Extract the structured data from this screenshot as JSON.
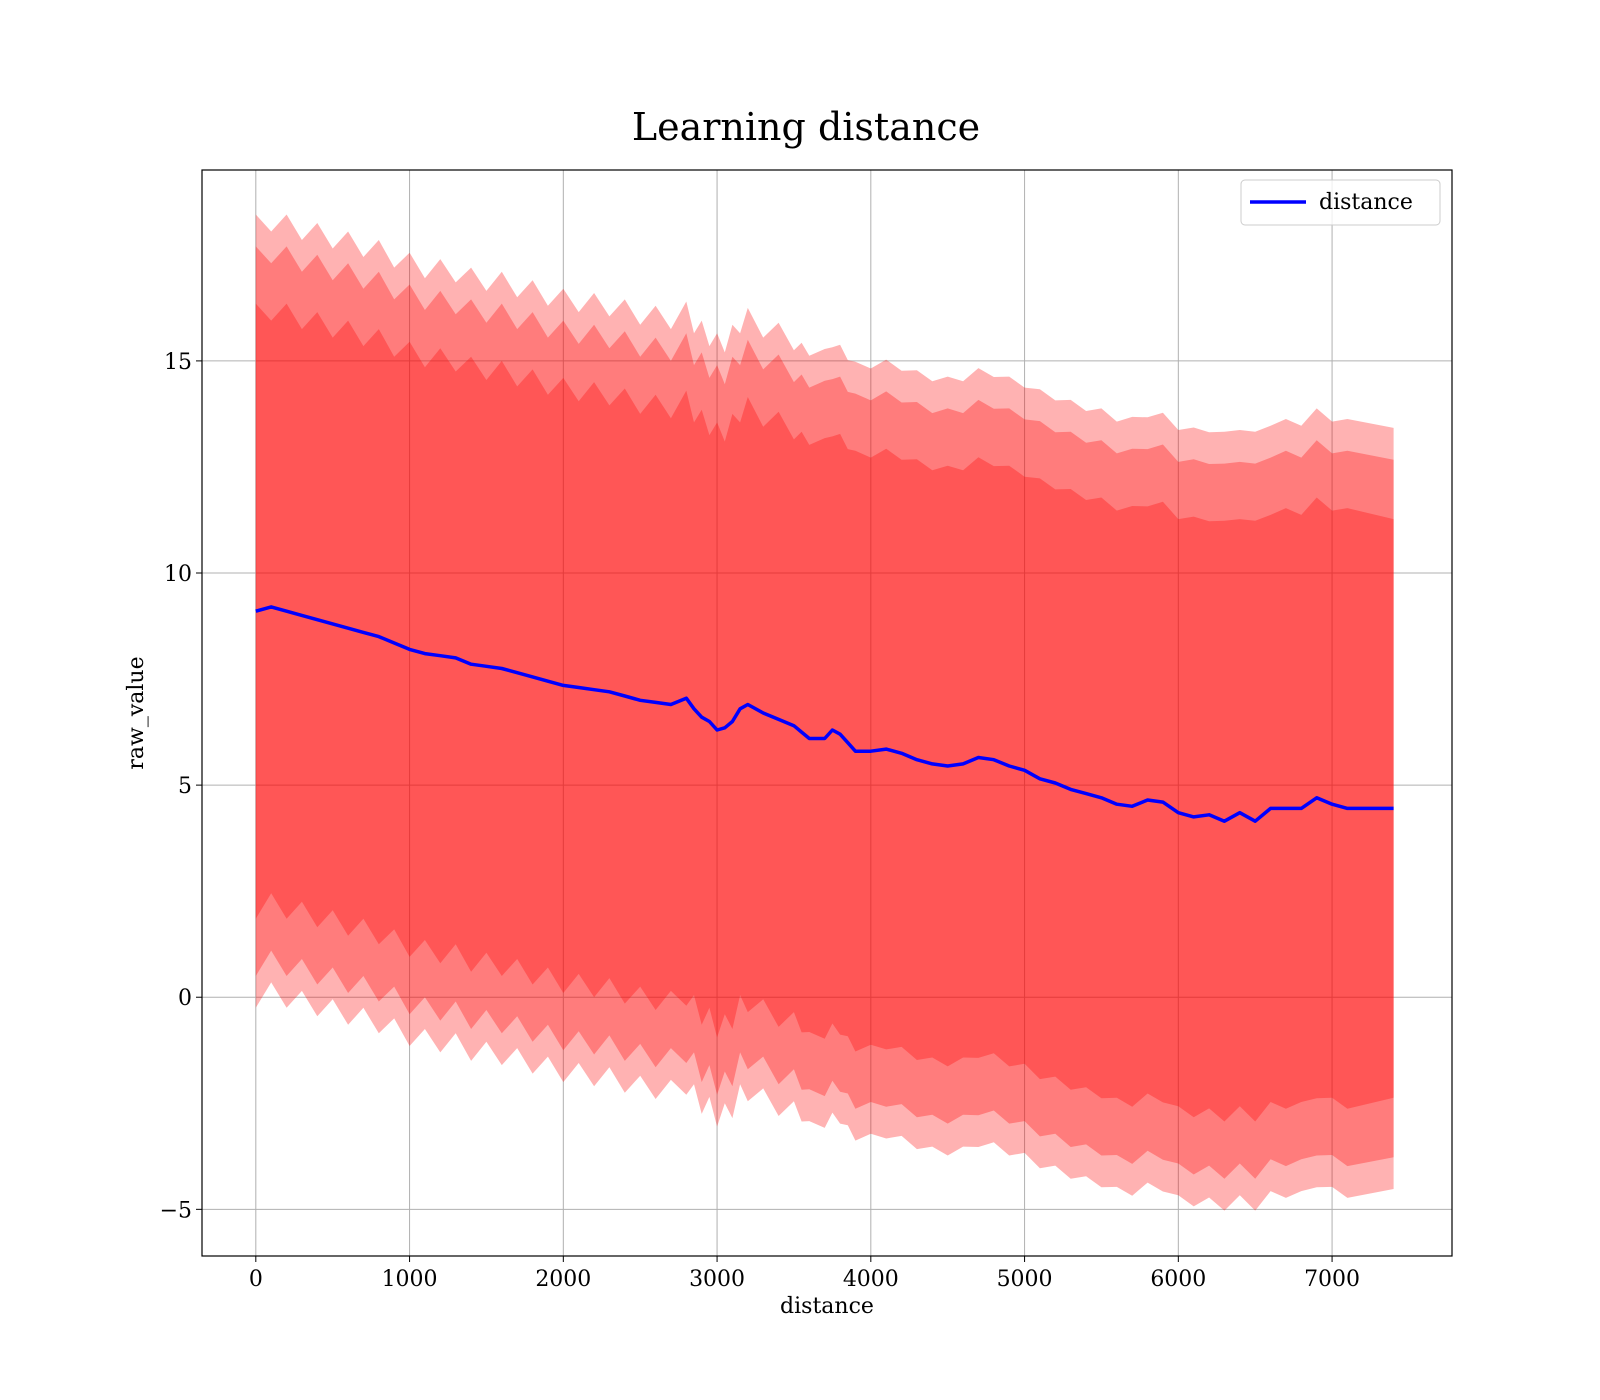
{
  "chart_data": {
    "type": "line",
    "title": "Learning distance",
    "xlabel": "distance",
    "ylabel": "raw_value",
    "xlim": [
      -350,
      7780
    ],
    "ylim": [
      -6.1,
      19.5
    ],
    "xticks": [
      0,
      1000,
      2000,
      3000,
      4000,
      5000,
      6000,
      7000
    ],
    "xtick_labels": [
      "0",
      "1000",
      "2000",
      "3000",
      "4000",
      "5000",
      "6000",
      "7000"
    ],
    "yticks": [
      -5,
      0,
      5,
      10,
      15
    ],
    "ytick_labels": [
      "−5",
      "0",
      "5",
      "10",
      "15"
    ],
    "grid": true,
    "legend_position": "top-right",
    "colors": {
      "line": "#0000ff",
      "band": "#ff0000",
      "grid": "#b0b0b0"
    },
    "band_opacity": 0.3,
    "series": [
      {
        "name": "distance",
        "x": [
          0,
          100,
          200,
          300,
          400,
          500,
          600,
          700,
          800,
          900,
          1000,
          1100,
          1200,
          1300,
          1400,
          1500,
          1600,
          1700,
          1800,
          1900,
          2000,
          2100,
          2200,
          2300,
          2400,
          2500,
          2600,
          2700,
          2800,
          2850,
          2900,
          2950,
          3000,
          3050,
          3100,
          3150,
          3200,
          3300,
          3400,
          3500,
          3550,
          3600,
          3700,
          3750,
          3800,
          3850,
          3900,
          4000,
          4100,
          4200,
          4300,
          4400,
          4500,
          4600,
          4700,
          4800,
          4900,
          5000,
          5100,
          5200,
          5300,
          5400,
          5500,
          5600,
          5700,
          5800,
          5900,
          6000,
          6100,
          6200,
          6300,
          6400,
          6500,
          6600,
          6700,
          6800,
          6900,
          7000,
          7100,
          7400
        ],
        "mean": [
          9.1,
          9.2,
          9.1,
          9.0,
          8.9,
          8.8,
          8.7,
          8.6,
          8.5,
          8.35,
          8.2,
          8.1,
          8.05,
          8.0,
          7.85,
          7.8,
          7.75,
          7.65,
          7.55,
          7.45,
          7.35,
          7.3,
          7.25,
          7.2,
          7.1,
          7.0,
          6.95,
          6.9,
          7.05,
          6.8,
          6.6,
          6.5,
          6.3,
          6.35,
          6.5,
          6.8,
          6.9,
          6.7,
          6.55,
          6.4,
          6.25,
          6.1,
          6.1,
          6.3,
          6.2,
          6.0,
          5.8,
          5.8,
          5.85,
          5.75,
          5.6,
          5.5,
          5.45,
          5.5,
          5.65,
          5.6,
          5.45,
          5.35,
          5.15,
          5.05,
          4.9,
          4.8,
          4.7,
          4.55,
          4.5,
          4.65,
          4.6,
          4.35,
          4.25,
          4.3,
          4.15,
          4.35,
          4.15,
          4.45,
          4.45,
          4.45,
          4.7,
          4.55,
          4.45,
          4.45
        ],
        "bands": [
          {
            "level": 1,
            "half_width": [
              7.0,
              7.0,
              7.0,
              7.0,
              7.0,
              7.0,
              7.0,
              7.0,
              7.0,
              7.0,
              7.0,
              7.0,
              7.0,
              7.0,
              7.0,
              7.0,
              7.0,
              7.0,
              7.0,
              7.0,
              7.0,
              7.0,
              7.0,
              7.0,
              7.0,
              7.0,
              7.0,
              7.0,
              7.0,
              7.0,
              7.0,
              7.0,
              7.0,
              7.0,
              7.0,
              7.0,
              7.0,
              7.0,
              7.0,
              7.0,
              7.0,
              7.0,
              7.0,
              7.0,
              7.0,
              7.0,
              7.0,
              7.0,
              7.0,
              7.0,
              7.0,
              7.0,
              7.0,
              7.0,
              7.0,
              7.0,
              7.0,
              7.0,
              7.0,
              7.0,
              7.0,
              7.0,
              7.0,
              7.0,
              7.0,
              7.0,
              7.0,
              7.0,
              7.0,
              7.0,
              7.0,
              7.0,
              7.0,
              7.0,
              7.0,
              7.0,
              7.0,
              7.0,
              7.0,
              6.9
            ]
          },
          {
            "level": 2,
            "half_width": [
              8.35,
              8.35,
              8.35,
              8.35,
              8.35,
              8.35,
              8.35,
              8.35,
              8.35,
              8.35,
              8.35,
              8.35,
              8.35,
              8.35,
              8.35,
              8.35,
              8.35,
              8.35,
              8.35,
              8.35,
              8.35,
              8.35,
              8.35,
              8.35,
              8.35,
              8.35,
              8.35,
              8.35,
              8.35,
              8.35,
              8.35,
              8.35,
              8.35,
              8.35,
              8.35,
              8.35,
              8.35,
              8.35,
              8.35,
              8.35,
              8.35,
              8.35,
              8.35,
              8.35,
              8.35,
              8.35,
              8.35,
              8.35,
              8.35,
              8.35,
              8.35,
              8.35,
              8.35,
              8.35,
              8.35,
              8.35,
              8.35,
              8.35,
              8.35,
              8.35,
              8.35,
              8.35,
              8.35,
              8.35,
              8.35,
              8.35,
              8.35,
              8.35,
              8.35,
              8.35,
              8.35,
              8.35,
              8.35,
              8.35,
              8.35,
              8.35,
              8.35,
              8.35,
              8.35,
              8.3
            ]
          },
          {
            "level": 3,
            "half_width": [
              9.1,
              9.1,
              9.1,
              9.1,
              9.1,
              9.1,
              9.1,
              9.1,
              9.1,
              9.1,
              9.1,
              9.1,
              9.1,
              9.1,
              9.1,
              9.1,
              9.1,
              9.1,
              9.1,
              9.1,
              9.1,
              9.1,
              9.1,
              9.1,
              9.1,
              9.1,
              9.1,
              9.1,
              9.1,
              9.1,
              9.1,
              9.1,
              9.1,
              9.1,
              9.1,
              9.1,
              9.1,
              9.1,
              9.1,
              9.1,
              9.1,
              9.1,
              9.1,
              9.1,
              9.1,
              9.1,
              9.1,
              9.1,
              9.1,
              9.1,
              9.1,
              9.1,
              9.1,
              9.1,
              9.1,
              9.1,
              9.1,
              9.1,
              9.1,
              9.1,
              9.1,
              9.1,
              9.1,
              9.1,
              9.1,
              9.1,
              9.1,
              9.1,
              9.1,
              9.1,
              9.1,
              9.1,
              9.1,
              9.1,
              9.1,
              9.1,
              9.1,
              9.1,
              9.1,
              9.05
            ]
          }
        ]
      }
    ]
  }
}
